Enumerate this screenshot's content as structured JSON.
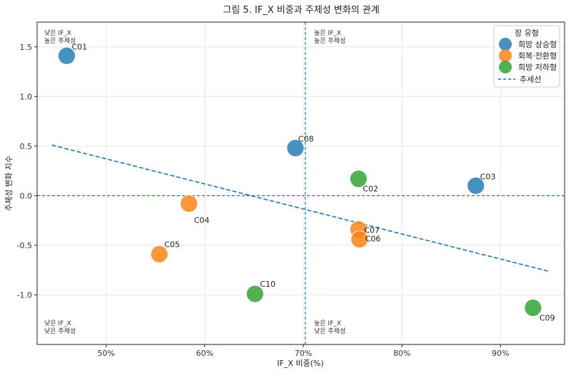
{
  "chart_data": {
    "type": "scatter",
    "title": "그림 5. IF_X 비중과 주체성 변화의 관계",
    "xlabel": "IF_X 비중(%)",
    "ylabel": "주체성 변화 지수",
    "xlim": [
      43.0,
      96.5
    ],
    "ylim": [
      -1.5,
      1.75
    ],
    "x_ticks": [
      50,
      60,
      70,
      80,
      90
    ],
    "x_tick_labels": [
      "50%",
      "60%",
      "70%",
      "80%",
      "90%"
    ],
    "y_ticks": [
      -1.0,
      -0.5,
      0.0,
      0.5,
      1.0,
      1.5
    ],
    "y_tick_labels": [
      "-1.0",
      "-0.5",
      "0.0",
      "0.5",
      "1.0",
      "1.5"
    ],
    "grid": true,
    "legend_position": "top-right",
    "legend": {
      "title": "장 유형",
      "trend_label": "추세선"
    },
    "series": [
      {
        "name": "희망 상승형",
        "color": "#1f77b4",
        "points": [
          {
            "id": "C01",
            "x": 46.0,
            "y": 1.41
          },
          {
            "id": "C08",
            "x": 69.2,
            "y": 0.48
          },
          {
            "id": "C03",
            "x": 87.5,
            "y": 0.1
          }
        ]
      },
      {
        "name": "회복·전환형",
        "color": "#ff7f0e",
        "points": [
          {
            "id": "C04",
            "x": 58.4,
            "y": -0.08
          },
          {
            "id": "C05",
            "x": 55.4,
            "y": -0.59
          },
          {
            "id": "C07",
            "x": 75.6,
            "y": -0.34
          },
          {
            "id": "C06",
            "x": 75.7,
            "y": -0.44
          }
        ]
      },
      {
        "name": "희망 저하형",
        "color": "#2ca02c",
        "points": [
          {
            "id": "C02",
            "x": 75.6,
            "y": 0.17
          },
          {
            "id": "C10",
            "x": 65.1,
            "y": -0.99
          },
          {
            "id": "C09",
            "x": 93.3,
            "y": -1.13
          }
        ]
      }
    ],
    "trend_line": {
      "x": [
        44.5,
        94.8
      ],
      "y": [
        0.51,
        -0.76
      ],
      "color": "#1f77b4"
    },
    "reference_lines": {
      "x": 70.2,
      "y": 0.0,
      "color": "#1f77b4"
    },
    "quadrant_labels": [
      {
        "position": "top-left",
        "lines": [
          "낮은 IF_X",
          "높은 주체성"
        ]
      },
      {
        "position": "top-right",
        "lines": [
          "높은 IF_X",
          "높은 주체성"
        ]
      },
      {
        "position": "bottom-left",
        "lines": [
          "낮은 IF_X",
          "낮은 주체성"
        ]
      },
      {
        "position": "bottom-right",
        "lines": [
          "높은 IF_X",
          "낮은 주체성"
        ]
      }
    ]
  }
}
